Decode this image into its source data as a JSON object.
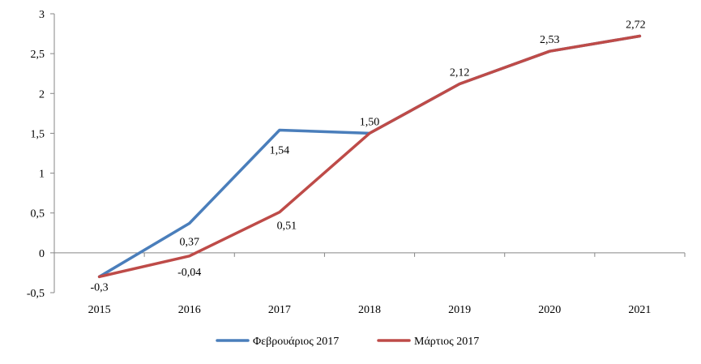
{
  "chart_data": {
    "type": "line",
    "title": "",
    "xlabel": "",
    "ylabel": "",
    "categories": [
      "2015",
      "2016",
      "2017",
      "2018",
      "2019",
      "2020",
      "2021"
    ],
    "y_ticks": [
      "-0,5",
      "0",
      "0,5",
      "1",
      "1,5",
      "2",
      "2,5",
      "3"
    ],
    "y_tick_values": [
      -0.5,
      0,
      0.5,
      1,
      1.5,
      2,
      2.5,
      3
    ],
    "ylim": [
      -0.5,
      3
    ],
    "grid": false,
    "legend_position": "bottom",
    "series": [
      {
        "name": "Φεβρουάριος 2017",
        "color": "#4a7ebb",
        "values": [
          -0.3,
          0.37,
          1.54,
          1.5,
          2.12,
          2.53,
          2.72
        ]
      },
      {
        "name": "Μάρτιος 2017",
        "color": "#be4b48",
        "values": [
          -0.3,
          -0.04,
          0.51,
          1.5,
          2.12,
          2.53,
          2.72
        ]
      }
    ],
    "data_labels": [
      {
        "category": "2015",
        "series": "Μάρτιος 2017",
        "value": -0.3,
        "text": "-0,3"
      },
      {
        "category": "2016",
        "series": "Φεβρουάριος 2017",
        "value": 0.37,
        "text": "0,37"
      },
      {
        "category": "2016",
        "series": "Μάρτιος 2017",
        "value": -0.04,
        "text": "-0,04"
      },
      {
        "category": "2017",
        "series": "Φεβρουάριος 2017",
        "value": 1.54,
        "text": "1,54"
      },
      {
        "category": "2017",
        "series": "Μάρτιος 2017",
        "value": 0.51,
        "text": "0,51"
      },
      {
        "category": "2018",
        "series": "Μάρτιος 2017",
        "value": 1.5,
        "text": "1,50"
      },
      {
        "category": "2019",
        "series": "Μάρτιος 2017",
        "value": 2.12,
        "text": "2,12"
      },
      {
        "category": "2020",
        "series": "Μάρτιος 2017",
        "value": 2.53,
        "text": "2,53"
      },
      {
        "category": "2021",
        "series": "Μάρτιος 2017",
        "value": 2.72,
        "text": "2,72"
      }
    ]
  }
}
